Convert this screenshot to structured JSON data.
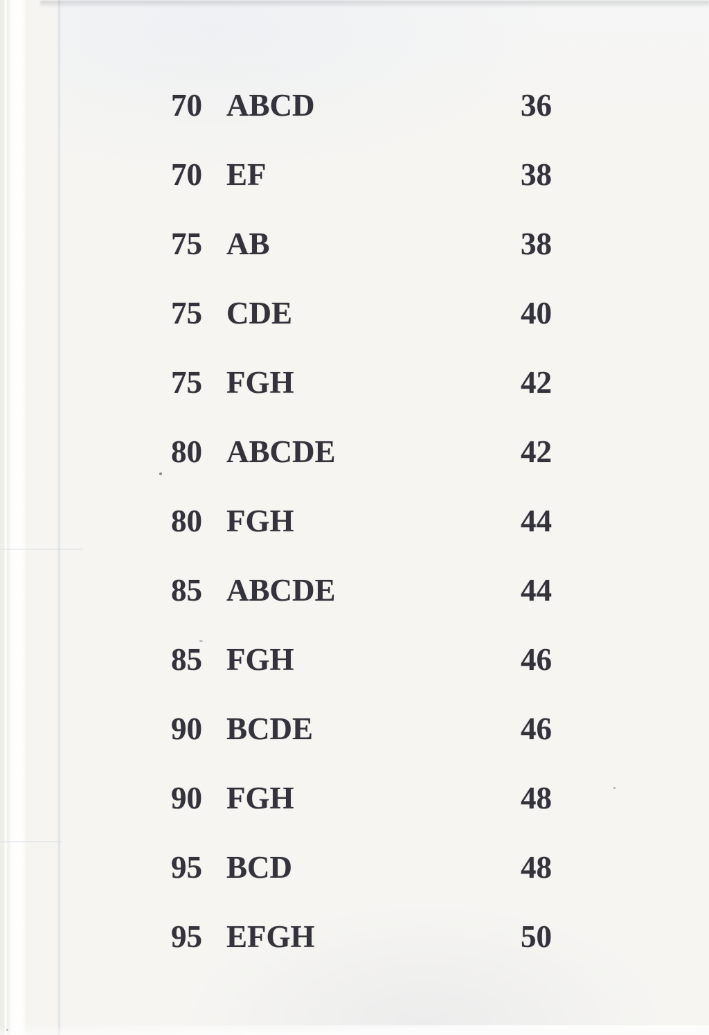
{
  "table": {
    "rows": [
      {
        "left_number": "70",
        "letters": "ABCD",
        "right_number": "36"
      },
      {
        "left_number": "70",
        "letters": "EF",
        "right_number": "38"
      },
      {
        "left_number": "75",
        "letters": "AB",
        "right_number": "38"
      },
      {
        "left_number": "75",
        "letters": "CDE",
        "right_number": "40"
      },
      {
        "left_number": "75",
        "letters": "FGH",
        "right_number": "42"
      },
      {
        "left_number": "80",
        "letters": "ABCDE",
        "right_number": "42"
      },
      {
        "left_number": "80",
        "letters": "FGH",
        "right_number": "44"
      },
      {
        "left_number": "85",
        "letters": "ABCDE",
        "right_number": "44"
      },
      {
        "left_number": "85",
        "letters": "FGH",
        "right_number": "46"
      },
      {
        "left_number": "90",
        "letters": "BCDE",
        "right_number": "46"
      },
      {
        "left_number": "90",
        "letters": "FGH",
        "right_number": "48"
      },
      {
        "left_number": "95",
        "letters": "BCD",
        "right_number": "48"
      },
      {
        "left_number": "95",
        "letters": "EFGH",
        "right_number": "50"
      }
    ]
  },
  "colors": {
    "paper": "#f6f5f2",
    "ink": "#34333b"
  }
}
